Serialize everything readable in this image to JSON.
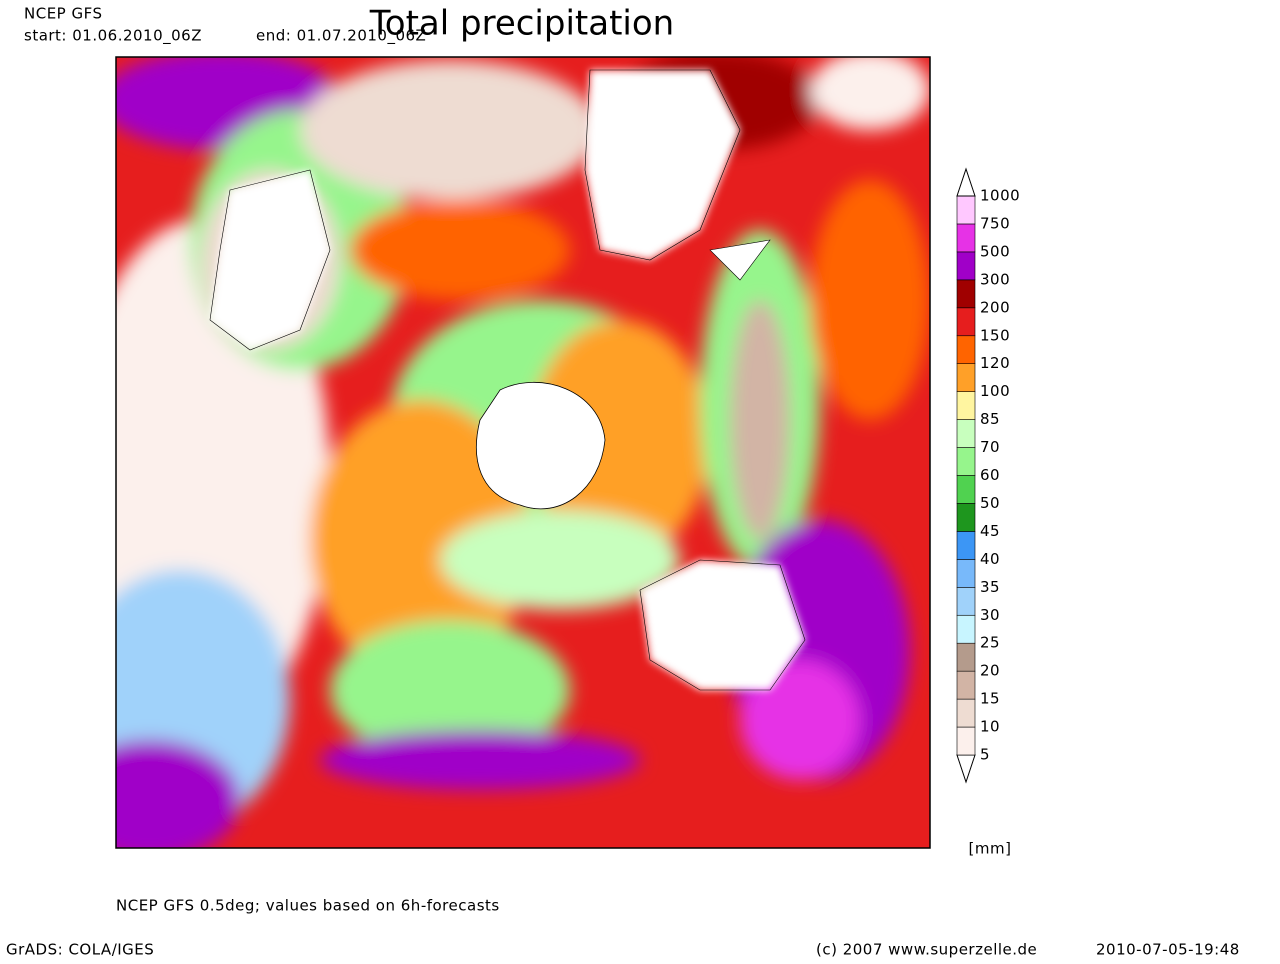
{
  "header": {
    "model": "NCEP GFS",
    "start": "start: 01.06.2010_06Z",
    "end": "end: 01.07.2010_06Z",
    "title": "Total precipitation"
  },
  "legend": {
    "unit": "[mm]",
    "levels": [
      "5",
      "10",
      "15",
      "20",
      "25",
      "30",
      "35",
      "40",
      "45",
      "50",
      "60",
      "70",
      "85",
      "100",
      "120",
      "150",
      "200",
      "300",
      "500",
      "750",
      "1000"
    ],
    "colors": [
      "#ffffff",
      "#fcf0ec",
      "#eedcd2",
      "#d2b4a5",
      "#b49b8c",
      "#c8f5ff",
      "#a0d2fa",
      "#78b9fa",
      "#3c96f5",
      "#1e961e",
      "#50d250",
      "#96f58c",
      "#c8ffbe",
      "#fff5a0",
      "#ffa028",
      "#ff6400",
      "#e61e1e",
      "#a00000",
      "#a000c8",
      "#e632e6",
      "#ffc8ff",
      "#ffffff"
    ]
  },
  "footer": {
    "note": "NCEP GFS 0.5deg; values based on 6h-forecasts",
    "software": "GrADS: COLA/IGES",
    "copyright": "(c) 2007 www.superzelle.de",
    "timestamp": "2010-07-05-19:48"
  }
}
